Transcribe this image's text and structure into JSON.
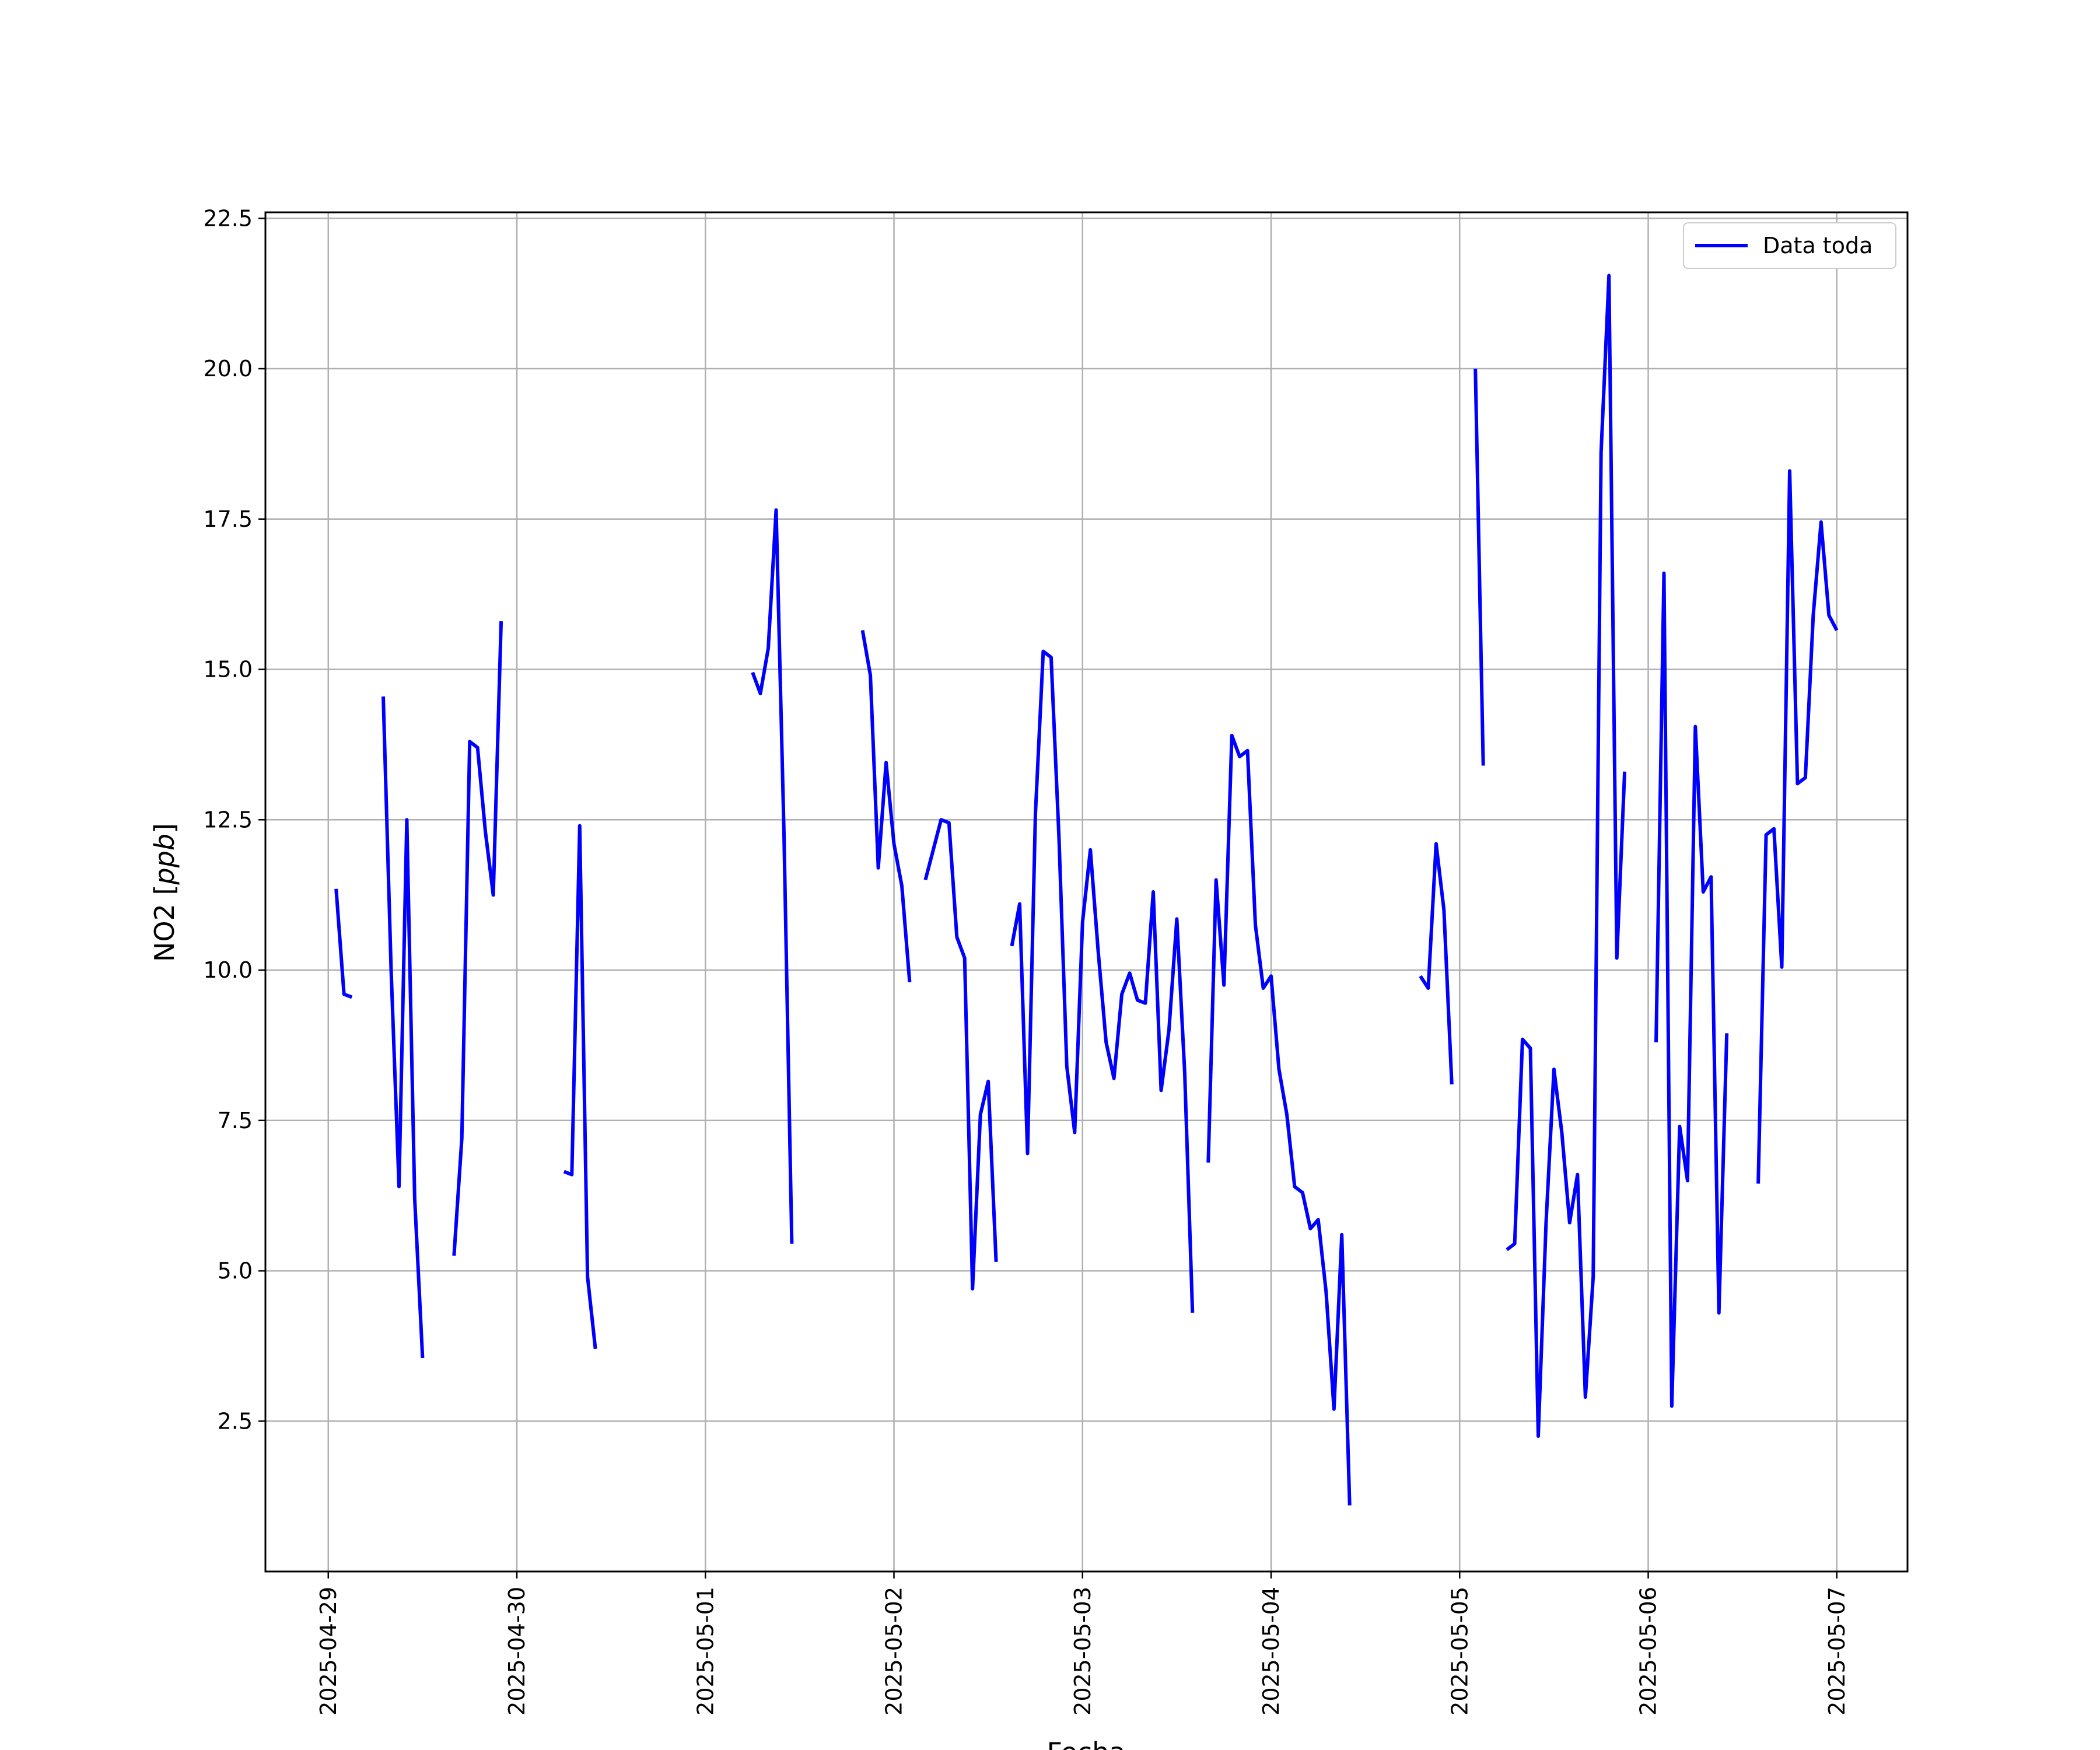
{
  "chart_data": {
    "type": "line",
    "title": "",
    "xlabel": "Fecha",
    "ylabel": "NO2 [ppb]",
    "ylabel_plain": "NO2 [",
    "ylabel_unit": "ppb",
    "ylabel_close": "]",
    "x_ticks": [
      "2025-04-29",
      "2025-04-30",
      "2025-05-01",
      "2025-05-02",
      "2025-05-03",
      "2025-05-04",
      "2025-05-05",
      "2025-05-06",
      "2025-05-07"
    ],
    "y_ticks": [
      "2.5",
      "5.0",
      "7.5",
      "10.0",
      "12.5",
      "15.0",
      "17.5",
      "20.0",
      "22.5"
    ],
    "xlim": [
      "2025-04-28 16:00",
      "2025-05-07 09:00"
    ],
    "ylim": [
      0.0,
      22.6
    ],
    "grid": true,
    "legend": {
      "position": "top-right",
      "entries": [
        "Data toda"
      ]
    },
    "colors": {
      "line": "#0000ff",
      "grid": "#b0b0b0",
      "axes": "#000000"
    },
    "series": [
      {
        "name": "Data toda",
        "segments": [
          [
            [
              "2025-04-29 01:00",
              11.35
            ],
            [
              "2025-04-29 02:00",
              9.6
            ],
            [
              "2025-04-29 03:00",
              9.55
            ]
          ],
          [
            [
              "2025-04-29 07:00",
              14.55
            ],
            [
              "2025-04-29 08:00",
              10.0
            ],
            [
              "2025-04-29 09:00",
              6.4
            ],
            [
              "2025-04-29 10:00",
              12.5
            ],
            [
              "2025-04-29 11:00",
              6.2
            ],
            [
              "2025-04-29 12:00",
              3.55
            ]
          ],
          [
            [
              "2025-04-29 16:00",
              5.25
            ],
            [
              "2025-04-29 17:00",
              7.2
            ],
            [
              "2025-04-29 18:00",
              13.8
            ],
            [
              "2025-04-29 19:00",
              13.7
            ],
            [
              "2025-04-29 20:00",
              12.3
            ],
            [
              "2025-04-29 21:00",
              11.25
            ],
            [
              "2025-04-29 22:00",
              15.8
            ]
          ],
          [
            [
              "2025-04-30 06:00",
              6.65
            ],
            [
              "2025-04-30 07:00",
              6.6
            ],
            [
              "2025-04-30 08:00",
              12.4
            ],
            [
              "2025-04-30 09:00",
              4.9
            ],
            [
              "2025-04-30 10:00",
              3.7
            ]
          ],
          [
            [
              "2025-05-01 06:00",
              14.95
            ],
            [
              "2025-05-01 07:00",
              14.6
            ],
            [
              "2025-05-01 08:00",
              15.35
            ],
            [
              "2025-05-01 09:00",
              17.65
            ],
            [
              "2025-05-01 10:00",
              12.3
            ],
            [
              "2025-05-01 11:00",
              5.45
            ]
          ],
          [
            [
              "2025-05-01 20:00",
              15.65
            ],
            [
              "2025-05-01 21:00",
              14.9
            ],
            [
              "2025-05-01 22:00",
              11.7
            ],
            [
              "2025-05-01 23:00",
              13.45
            ],
            [
              "2025-05-02 00:00",
              12.1
            ],
            [
              "2025-05-02 01:00",
              11.4
            ],
            [
              "2025-05-02 02:00",
              9.8
            ]
          ],
          [
            [
              "2025-05-02 04:00",
              11.5
            ],
            [
              "2025-05-02 05:00",
              12.0
            ],
            [
              "2025-05-02 06:00",
              12.5
            ],
            [
              "2025-05-02 07:00",
              12.45
            ],
            [
              "2025-05-02 08:00",
              10.55
            ],
            [
              "2025-05-02 09:00",
              10.2
            ],
            [
              "2025-05-02 10:00",
              4.7
            ],
            [
              "2025-05-02 11:00",
              7.6
            ],
            [
              "2025-05-02 12:00",
              8.15
            ],
            [
              "2025-05-02 13:00",
              5.15
            ]
          ],
          [
            [
              "2025-05-02 15:00",
              10.4
            ],
            [
              "2025-05-02 16:00",
              11.1
            ],
            [
              "2025-05-02 17:00",
              6.95
            ],
            [
              "2025-05-02 18:00",
              12.6
            ],
            [
              "2025-05-02 19:00",
              15.3
            ],
            [
              "2025-05-02 20:00",
              15.2
            ],
            [
              "2025-05-02 21:00",
              12.2
            ],
            [
              "2025-05-02 22:00",
              8.4
            ],
            [
              "2025-05-02 23:00",
              7.3
            ],
            [
              "2025-05-03 00:00",
              10.8
            ],
            [
              "2025-05-03 01:00",
              12.0
            ],
            [
              "2025-05-03 02:00",
              10.3
            ],
            [
              "2025-05-03 03:00",
              8.8
            ],
            [
              "2025-05-03 04:00",
              8.2
            ],
            [
              "2025-05-03 05:00",
              9.6
            ],
            [
              "2025-05-03 06:00",
              9.95
            ],
            [
              "2025-05-03 07:00",
              9.5
            ],
            [
              "2025-05-03 08:00",
              9.45
            ],
            [
              "2025-05-03 09:00",
              11.3
            ],
            [
              "2025-05-03 10:00",
              8.0
            ],
            [
              "2025-05-03 11:00",
              9.0
            ],
            [
              "2025-05-03 12:00",
              10.85
            ],
            [
              "2025-05-03 13:00",
              8.3
            ],
            [
              "2025-05-03 14:00",
              4.3
            ]
          ],
          [
            [
              "2025-05-03 16:00",
              6.8
            ],
            [
              "2025-05-03 17:00",
              11.5
            ],
            [
              "2025-05-03 18:00",
              9.75
            ],
            [
              "2025-05-03 19:00",
              13.9
            ],
            [
              "2025-05-03 20:00",
              13.55
            ],
            [
              "2025-05-03 21:00",
              13.65
            ],
            [
              "2025-05-03 22:00",
              10.75
            ],
            [
              "2025-05-03 23:00",
              9.7
            ],
            [
              "2025-05-04 00:00",
              9.9
            ],
            [
              "2025-05-04 01:00",
              8.35
            ],
            [
              "2025-05-04 02:00",
              7.6
            ],
            [
              "2025-05-04 03:00",
              6.4
            ],
            [
              "2025-05-04 04:00",
              6.3
            ],
            [
              "2025-05-04 05:00",
              5.7
            ],
            [
              "2025-05-04 06:00",
              5.85
            ],
            [
              "2025-05-04 07:00",
              4.65
            ],
            [
              "2025-05-04 08:00",
              2.7
            ],
            [
              "2025-05-04 09:00",
              5.6
            ],
            [
              "2025-05-04 10:00",
              1.1
            ]
          ],
          [
            [
              "2025-05-04 19:00",
              9.9
            ],
            [
              "2025-05-04 20:00",
              9.7
            ],
            [
              "2025-05-04 21:00",
              12.1
            ],
            [
              "2025-05-04 22:00",
              11.0
            ],
            [
              "2025-05-04 23:00",
              8.1
            ]
          ],
          [
            [
              "2025-05-05 02:00",
              20.0
            ],
            [
              "2025-05-05 03:00",
              13.4
            ]
          ],
          [
            [
              "2025-05-05 06:00",
              5.35
            ],
            [
              "2025-05-05 07:00",
              5.45
            ],
            [
              "2025-05-05 08:00",
              8.85
            ],
            [
              "2025-05-05 09:00",
              8.7
            ],
            [
              "2025-05-05 10:00",
              2.25
            ],
            [
              "2025-05-05 11:00",
              5.8
            ],
            [
              "2025-05-05 12:00",
              8.35
            ],
            [
              "2025-05-05 13:00",
              7.3
            ],
            [
              "2025-05-05 14:00",
              5.8
            ],
            [
              "2025-05-05 15:00",
              6.6
            ],
            [
              "2025-05-05 16:00",
              2.9
            ],
            [
              "2025-05-05 17:00",
              4.9
            ],
            [
              "2025-05-05 18:00",
              18.6
            ],
            [
              "2025-05-05 19:00",
              21.55
            ],
            [
              "2025-05-05 20:00",
              10.2
            ],
            [
              "2025-05-05 21:00",
              13.3
            ]
          ],
          [
            [
              "2025-05-06 01:00",
              8.8
            ],
            [
              "2025-05-06 02:00",
              16.6
            ],
            [
              "2025-05-06 03:00",
              2.75
            ],
            [
              "2025-05-06 04:00",
              7.4
            ],
            [
              "2025-05-06 05:00",
              6.5
            ],
            [
              "2025-05-06 06:00",
              14.05
            ],
            [
              "2025-05-06 07:00",
              11.3
            ],
            [
              "2025-05-06 08:00",
              11.55
            ],
            [
              "2025-05-06 09:00",
              4.3
            ],
            [
              "2025-05-06 10:00",
              8.95
            ]
          ],
          [
            [
              "2025-05-06 14:00",
              6.45
            ],
            [
              "2025-05-06 15:00",
              12.25
            ],
            [
              "2025-05-06 16:00",
              12.35
            ],
            [
              "2025-05-06 17:00",
              10.05
            ],
            [
              "2025-05-06 18:00",
              18.3
            ],
            [
              "2025-05-06 19:00",
              13.1
            ],
            [
              "2025-05-06 20:00",
              13.2
            ],
            [
              "2025-05-06 21:00",
              15.9
            ],
            [
              "2025-05-06 22:00",
              17.45
            ],
            [
              "2025-05-06 23:00",
              15.9
            ],
            [
              "2025-05-07 00:00",
              15.65
            ]
          ]
        ]
      }
    ]
  }
}
